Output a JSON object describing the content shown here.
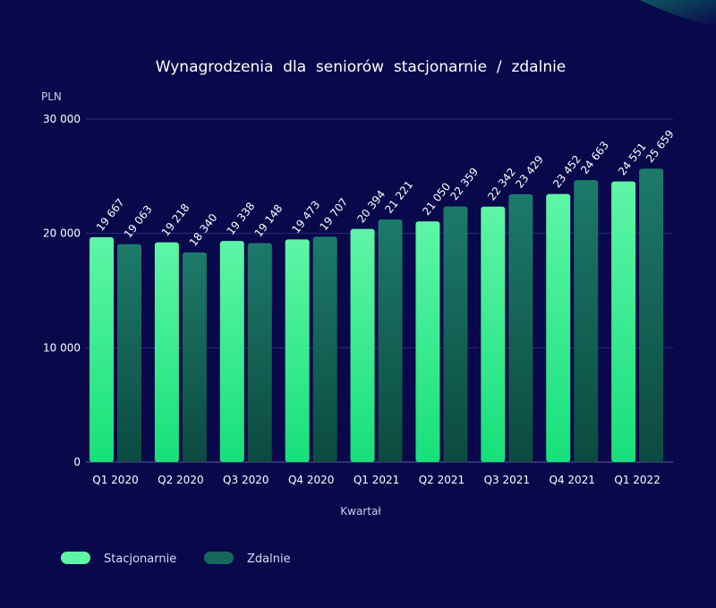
{
  "colors": {
    "background": "#08084a",
    "stacjonarnie_top": "#5ef5a6",
    "stacjonarnie_bottom": "#17e07a",
    "zdalnie_top": "#1c7a6a",
    "zdalnie_bottom": "#0c4a40"
  },
  "chart_data": {
    "type": "bar",
    "title": "Wynagrodzenia  dla  seniorów  stacjonarnie  /  zdalnie",
    "ylabel": "PLN",
    "xlabel": "Kwartał",
    "ylim": [
      0,
      30000
    ],
    "yticks": [
      {
        "value": 0,
        "label": "0"
      },
      {
        "value": 10000,
        "label": "10 000"
      },
      {
        "value": 20000,
        "label": "20 000"
      },
      {
        "value": 30000,
        "label": "30 000"
      }
    ],
    "grid": true,
    "legend_position": "bottom-left",
    "categories": [
      "Q1 2020",
      "Q2 2020",
      "Q3 2020",
      "Q4 2020",
      "Q1 2021",
      "Q2 2021",
      "Q3 2021",
      "Q4 2021",
      "Q1 2022"
    ],
    "series": [
      {
        "name": "Stacjonarnie",
        "values": [
          19667,
          19218,
          19338,
          19473,
          20394,
          21050,
          22342,
          23452,
          24551
        ],
        "labels": [
          "19 667",
          "19 218",
          "19 338",
          "19 473",
          "20 394",
          "21 050",
          "22 342",
          "23 452",
          "24 551"
        ]
      },
      {
        "name": "Zdalnie",
        "values": [
          19063,
          18340,
          19148,
          19707,
          21221,
          22359,
          23429,
          24663,
          25659
        ],
        "labels": [
          "19 063",
          "18 340",
          "19 148",
          "19 707",
          "21 221",
          "22 359",
          "23 429",
          "24 663",
          "25 659"
        ]
      }
    ]
  }
}
